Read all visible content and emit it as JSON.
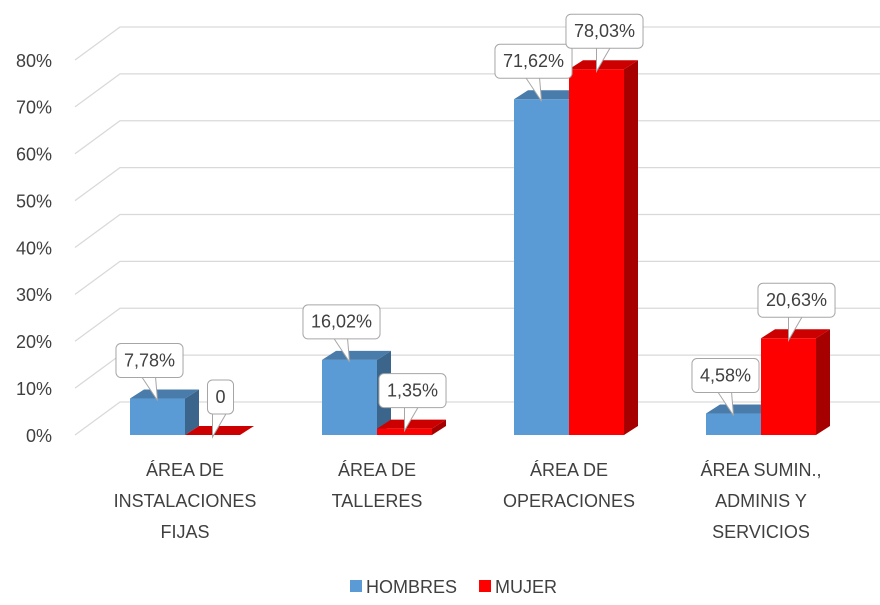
{
  "chart_data": {
    "type": "bar3d",
    "categories": [
      "ÁREA DE\nINSTALACIONES\nFIJAS",
      "ÁREA DE\nTALLERES",
      "ÁREA DE\nOPERACIONES",
      "ÁREA SUMIN.,\nADMINIS Y\nSERVICIOS"
    ],
    "series": [
      {
        "name": "HOMBRES",
        "color": "#5b9bd5",
        "values": [
          7.78,
          16.02,
          71.62,
          4.58
        ],
        "value_labels": [
          "7,78%",
          "16,02%",
          "71,62%",
          "4,58%"
        ]
      },
      {
        "name": "MUJER",
        "color": "#ff0000",
        "values": [
          0,
          1.35,
          78.03,
          20.63
        ],
        "value_labels": [
          "0",
          "1,35%",
          "78,03%",
          "20,63%"
        ]
      }
    ],
    "ylim": [
      0,
      80
    ],
    "yticks": [
      {
        "value": 0,
        "label": "0%"
      },
      {
        "value": 10,
        "label": "10%"
      },
      {
        "value": 20,
        "label": "20%"
      },
      {
        "value": 30,
        "label": "30%"
      },
      {
        "value": 40,
        "label": "40%"
      },
      {
        "value": 50,
        "label": "50%"
      },
      {
        "value": 60,
        "label": "60%"
      },
      {
        "value": 70,
        "label": "70%"
      },
      {
        "value": 80,
        "label": "80%"
      }
    ],
    "grid": true,
    "legend": "bottom"
  }
}
